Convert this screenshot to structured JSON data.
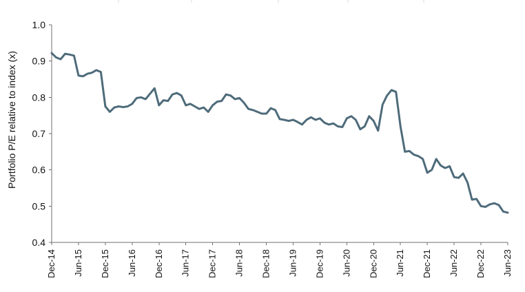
{
  "chart_data": {
    "type": "line",
    "title": "",
    "xlabel": "",
    "ylabel": "Portfolio P/E  relative to index (x)",
    "ylim": [
      0.4,
      1.0
    ],
    "yticks": [
      1.0,
      0.9,
      0.8,
      0.7,
      0.6,
      0.5,
      0.4
    ],
    "xticks": [
      "Dec-14",
      "Jun-15",
      "Dec-15",
      "Jun-16",
      "Dec-16",
      "Jun-17",
      "Dec-17",
      "Jun-18",
      "Dec-18",
      "Jun-19",
      "Dec-19",
      "Jun-20",
      "Dec-20",
      "Jun-21",
      "Dec-21",
      "Jun-22",
      "Dec-22",
      "Jun-23"
    ],
    "grid": false,
    "legend": "none",
    "colors": {
      "line": "#4e6b7a",
      "axis": "#6f6f6f"
    },
    "series": [
      {
        "values": [
          0.922,
          0.91,
          0.905,
          0.92,
          0.918,
          0.915,
          0.86,
          0.858,
          0.865,
          0.868,
          0.875,
          0.87,
          0.775,
          0.76,
          0.772,
          0.775,
          0.773,
          0.775,
          0.782,
          0.798,
          0.8,
          0.795,
          0.81,
          0.825,
          0.778,
          0.792,
          0.79,
          0.808,
          0.812,
          0.805,
          0.778,
          0.782,
          0.775,
          0.768,
          0.772,
          0.76,
          0.778,
          0.788,
          0.79,
          0.808,
          0.805,
          0.795,
          0.798,
          0.785,
          0.768,
          0.765,
          0.76,
          0.755,
          0.755,
          0.77,
          0.765,
          0.74,
          0.738,
          0.735,
          0.738,
          0.732,
          0.725,
          0.738,
          0.745,
          0.738,
          0.742,
          0.73,
          0.725,
          0.728,
          0.72,
          0.718,
          0.742,
          0.748,
          0.738,
          0.712,
          0.72,
          0.748,
          0.735,
          0.708,
          0.78,
          0.805,
          0.82,
          0.815,
          0.72,
          0.65,
          0.652,
          0.642,
          0.638,
          0.63,
          0.592,
          0.6,
          0.63,
          0.612,
          0.605,
          0.61,
          0.58,
          0.578,
          0.59,
          0.565,
          0.518,
          0.52,
          0.5,
          0.498,
          0.505,
          0.508,
          0.503,
          0.485,
          0.482
        ]
      }
    ]
  }
}
